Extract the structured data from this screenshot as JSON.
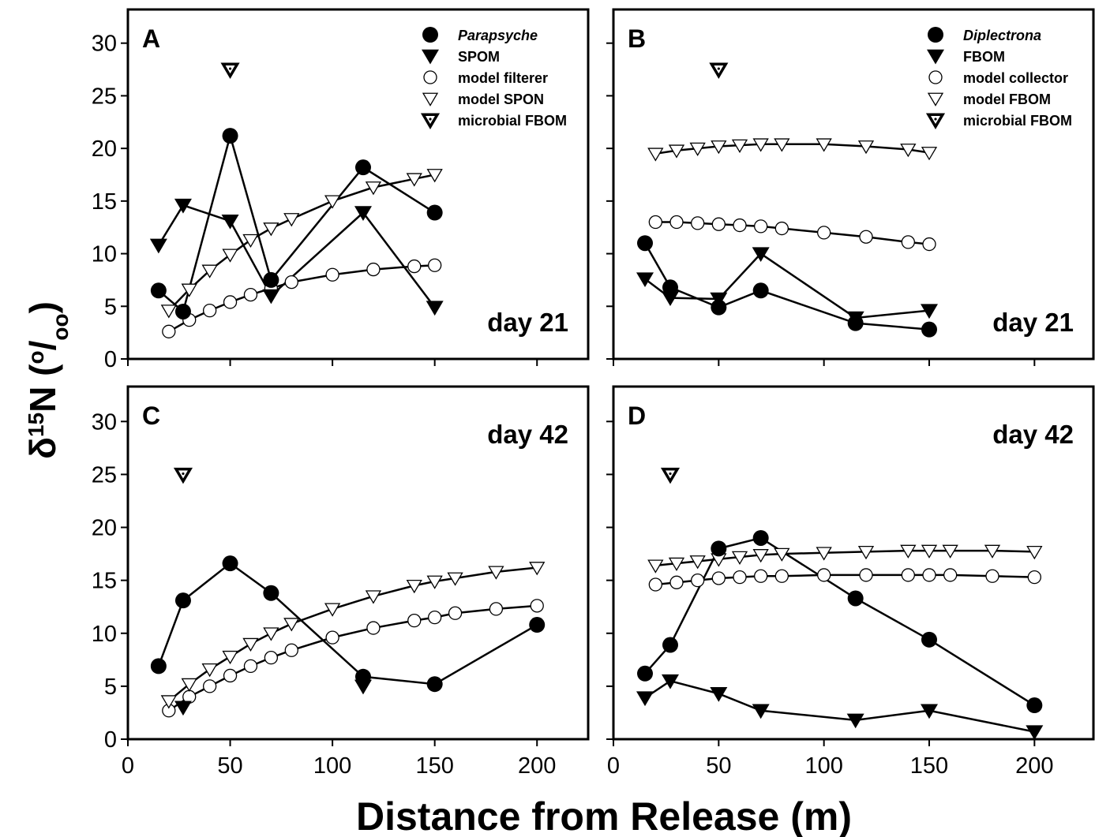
{
  "xlabel": "Distance from Release (m)",
  "ylabel": [
    {
      "text": "δ"
    },
    {
      "text": "15",
      "style": "sup"
    },
    {
      "text": "N ("
    },
    {
      "text": "o",
      "style": "sup"
    },
    {
      "text": "/"
    },
    {
      "text": "oo",
      "style": "sub"
    },
    {
      "text": ")"
    }
  ],
  "chart_data": [
    {
      "type": "line",
      "panel_label": "A",
      "annotation": "day 21",
      "annotation_position": "bottom-right",
      "legend": "top-right",
      "xlim": [
        0,
        225
      ],
      "ylim": [
        0,
        33.2
      ],
      "xticks": [
        0,
        50,
        100,
        150,
        200
      ],
      "yticks": [
        0,
        5,
        10,
        15,
        20,
        25,
        30
      ],
      "xtick_labels": false,
      "ytick_labels": true,
      "series": [
        {
          "name": "Parapsyche",
          "italic": true,
          "marker": "filled-circle",
          "line": true,
          "x": [
            15,
            27,
            50,
            70,
            115,
            150
          ],
          "values": [
            6.5,
            4.5,
            21.2,
            7.5,
            18.2,
            13.9
          ]
        },
        {
          "name": "SPOM",
          "marker": "filled-triangle",
          "line": true,
          "x": [
            15,
            27,
            50,
            70,
            115,
            150
          ],
          "values": [
            10.8,
            14.6,
            13.1,
            6.0,
            13.9,
            4.9
          ]
        },
        {
          "name": "model filterer",
          "marker": "open-circle",
          "line": true,
          "x": [
            20,
            30,
            40,
            50,
            60,
            70,
            80,
            100,
            120,
            140,
            150
          ],
          "values": [
            2.6,
            3.7,
            4.6,
            5.4,
            6.1,
            6.7,
            7.3,
            8.0,
            8.5,
            8.8,
            8.9
          ]
        },
        {
          "name": "model SPON",
          "marker": "open-triangle",
          "line": true,
          "x": [
            20,
            30,
            40,
            50,
            60,
            70,
            80,
            100,
            120,
            140,
            150
          ],
          "values": [
            4.6,
            6.6,
            8.4,
            9.9,
            11.3,
            12.4,
            13.3,
            15.0,
            16.3,
            17.1,
            17.5
          ]
        },
        {
          "name": "microbial FBOM",
          "marker": "dotted-triangle",
          "line": false,
          "x": [
            50
          ],
          "values": [
            27.5
          ]
        }
      ]
    },
    {
      "type": "line",
      "panel_label": "B",
      "annotation": "day 21",
      "annotation_position": "bottom-right",
      "legend": "top-right",
      "xlim": [
        0,
        228
      ],
      "ylim": [
        0,
        33.2
      ],
      "xticks": [
        0,
        50,
        100,
        150,
        200
      ],
      "yticks": [
        0,
        5,
        10,
        15,
        20,
        25,
        30
      ],
      "xtick_labels": false,
      "ytick_labels": false,
      "series": [
        {
          "name": "Diplectrona",
          "italic": true,
          "marker": "filled-circle",
          "line": true,
          "x": [
            15,
            27,
            50,
            70,
            115,
            150
          ],
          "values": [
            11.0,
            6.8,
            4.9,
            6.5,
            3.4,
            2.8
          ]
        },
        {
          "name": "FBOM",
          "marker": "filled-triangle",
          "line": true,
          "x": [
            15,
            27,
            50,
            70,
            115,
            150
          ],
          "values": [
            7.6,
            5.8,
            5.7,
            10.0,
            3.9,
            4.6
          ]
        },
        {
          "name": "model collector",
          "marker": "open-circle",
          "line": true,
          "x": [
            20,
            30,
            40,
            50,
            60,
            70,
            80,
            100,
            120,
            140,
            150
          ],
          "values": [
            13.0,
            13.0,
            12.9,
            12.8,
            12.7,
            12.6,
            12.4,
            12.0,
            11.6,
            11.1,
            10.9
          ]
        },
        {
          "name": "model FBOM",
          "marker": "open-triangle",
          "line": true,
          "x": [
            20,
            30,
            40,
            50,
            60,
            70,
            80,
            100,
            120,
            140,
            150
          ],
          "values": [
            19.5,
            19.8,
            20.0,
            20.2,
            20.3,
            20.4,
            20.4,
            20.4,
            20.2,
            19.9,
            19.6
          ]
        },
        {
          "name": "microbial FBOM",
          "marker": "dotted-triangle",
          "line": false,
          "x": [
            50
          ],
          "values": [
            27.5
          ]
        }
      ]
    },
    {
      "type": "line",
      "panel_label": "C",
      "annotation": "day 42",
      "annotation_position": "top-right",
      "xlim": [
        0,
        225
      ],
      "ylim": [
        0,
        33.3
      ],
      "xticks": [
        0,
        50,
        100,
        150,
        200
      ],
      "yticks": [
        0,
        5,
        10,
        15,
        20,
        25,
        30
      ],
      "xtick_labels": true,
      "ytick_labels": true,
      "series": [
        {
          "marker": "filled-circle",
          "line": true,
          "x": [
            15,
            27,
            50,
            70,
            115,
            150,
            200
          ],
          "values": [
            6.9,
            13.1,
            16.6,
            13.8,
            5.9,
            5.2,
            10.8
          ]
        },
        {
          "marker": "filled-triangle",
          "line": false,
          "x": [
            27,
            115
          ],
          "values": [
            3.0,
            5.0
          ]
        },
        {
          "marker": "open-circle",
          "line": true,
          "x": [
            20,
            30,
            40,
            50,
            60,
            70,
            80,
            100,
            120,
            140,
            150,
            160,
            180,
            200
          ],
          "values": [
            2.7,
            4.0,
            5.0,
            6.0,
            6.9,
            7.7,
            8.4,
            9.6,
            10.5,
            11.2,
            11.5,
            11.9,
            12.3,
            12.6
          ]
        },
        {
          "marker": "open-triangle",
          "line": true,
          "x": [
            20,
            30,
            40,
            50,
            60,
            70,
            80,
            100,
            120,
            140,
            150,
            160,
            180,
            200
          ],
          "values": [
            3.6,
            5.2,
            6.6,
            7.8,
            9.0,
            10.0,
            10.9,
            12.3,
            13.5,
            14.5,
            14.9,
            15.2,
            15.8,
            16.2
          ]
        },
        {
          "marker": "dotted-triangle",
          "line": false,
          "x": [
            27
          ],
          "values": [
            25.0
          ]
        }
      ]
    },
    {
      "type": "line",
      "panel_label": "D",
      "annotation": "day 42",
      "annotation_position": "top-right",
      "xlim": [
        0,
        228
      ],
      "ylim": [
        0,
        33.3
      ],
      "xticks": [
        0,
        50,
        100,
        150,
        200
      ],
      "yticks": [
        0,
        5,
        10,
        15,
        20,
        25,
        30
      ],
      "xtick_labels": true,
      "ytick_labels": false,
      "series": [
        {
          "marker": "filled-circle",
          "line": true,
          "x": [
            15,
            27,
            50,
            70,
            115,
            150,
            200
          ],
          "values": [
            6.2,
            8.9,
            18.0,
            19.0,
            13.3,
            9.4,
            3.2
          ]
        },
        {
          "marker": "filled-triangle",
          "line": true,
          "x": [
            15,
            27,
            50,
            70,
            115,
            150,
            200
          ],
          "values": [
            3.9,
            5.5,
            4.3,
            2.7,
            1.8,
            2.7,
            0.7
          ]
        },
        {
          "marker": "open-circle",
          "line": true,
          "x": [
            20,
            30,
            40,
            50,
            60,
            70,
            80,
            100,
            120,
            140,
            150,
            160,
            180,
            200
          ],
          "values": [
            14.6,
            14.8,
            15.0,
            15.2,
            15.3,
            15.4,
            15.4,
            15.5,
            15.5,
            15.5,
            15.5,
            15.5,
            15.4,
            15.3
          ]
        },
        {
          "marker": "open-triangle",
          "line": true,
          "x": [
            20,
            30,
            40,
            50,
            60,
            70,
            80,
            100,
            120,
            140,
            150,
            160,
            180,
            200
          ],
          "values": [
            16.4,
            16.6,
            16.8,
            17.0,
            17.2,
            17.4,
            17.5,
            17.6,
            17.7,
            17.8,
            17.8,
            17.8,
            17.8,
            17.7
          ]
        },
        {
          "marker": "dotted-triangle",
          "line": false,
          "x": [
            27
          ],
          "values": [
            25.0
          ]
        }
      ]
    }
  ]
}
